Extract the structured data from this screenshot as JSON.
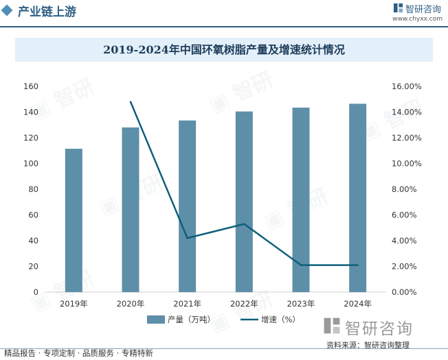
{
  "header": {
    "section_title": "产业链上游",
    "brand_name": "智研咨询",
    "site_url": "www.chyxx.com"
  },
  "chart_data": {
    "type": "bar",
    "title": "2019-2024年中国环氧树脂产量及增速统计情况",
    "categories": [
      "2019年",
      "2020年",
      "2021年",
      "2022年",
      "2023年",
      "2024年"
    ],
    "series": [
      {
        "name": "产量（万吨）",
        "type": "bar",
        "axis": "left",
        "values": [
          111.5,
          128.1,
          133.5,
          140.5,
          143.5,
          146.5
        ],
        "color": "#5e8fa8"
      },
      {
        "name": "增速（%）",
        "type": "line",
        "axis": "right",
        "values": [
          null,
          14.8,
          4.2,
          5.3,
          2.1,
          2.1
        ],
        "color": "#0e5f7c"
      }
    ],
    "ylim_left": [
      0,
      160
    ],
    "yticks_left": [
      "0",
      "20",
      "40",
      "60",
      "80",
      "100",
      "120",
      "140",
      "160"
    ],
    "ylim_right": [
      0,
      16
    ],
    "yticks_right": [
      "0.00%",
      "2.00%",
      "4.00%",
      "6.00%",
      "8.00%",
      "10.00%",
      "12.00%",
      "14.00%",
      "16.00%"
    ],
    "legend_position": "bottom",
    "grid": false
  },
  "footer": {
    "tagline": "精品报告 · 专项定制 · 品质服务 · 专精特新",
    "source": "资料来源：智研咨询整理",
    "brand_big": "智研咨询"
  },
  "colors": {
    "accent": "#2f5f86",
    "bar": "#5e8fa8",
    "line": "#0e5f7c"
  }
}
